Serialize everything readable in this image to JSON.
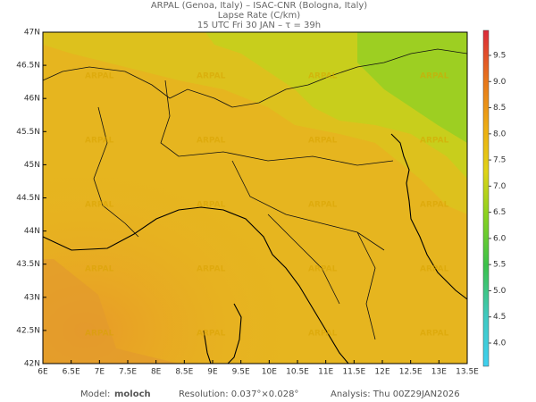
{
  "header": {
    "line1": "ARPAL (Genoa, Italy)  –  ISAC-CNR (Bologna, Italy)",
    "line2": "Lapse Rate (C/km)",
    "line3": "15 UTC Fri 30 JAN  –  τ = 39h"
  },
  "map": {
    "lat_labels": [
      "47N",
      "46.5N",
      "46N",
      "45.5N",
      "45N",
      "44.5N",
      "44N",
      "43.5N",
      "43N",
      "42.5N",
      "42N"
    ],
    "lon_labels": [
      "6E",
      "6.5E",
      "7E",
      "7.5E",
      "8E",
      "8.5E",
      "9E",
      "9.5E",
      "10E",
      "10.5E",
      "11E",
      "11.5E",
      "12E",
      "12.5E",
      "13E",
      "13.5E"
    ],
    "watermark": "ARPAL"
  },
  "colorbar": {
    "labels": [
      "9.5",
      "9.0",
      "8.5",
      "8.0",
      "7.5",
      "7.0",
      "6.5",
      "6.0",
      "5.5",
      "5.0",
      "4.5",
      "4.0"
    ]
  },
  "footer": {
    "model_label": "Model:",
    "model": "moloch",
    "resolution": "Resolution: 0.037°×0.028°",
    "analysis": "Analysis: Thu 00Z29JAN2026"
  }
}
